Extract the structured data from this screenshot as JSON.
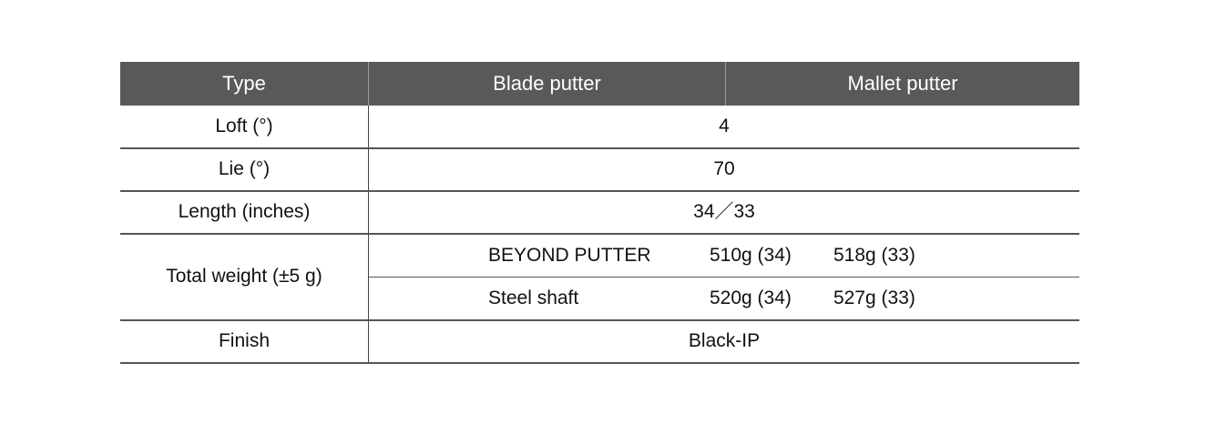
{
  "table": {
    "header": {
      "type": "Type",
      "blade": "Blade putter",
      "mallet": "Mallet putter"
    },
    "rows": {
      "loft": {
        "label": "Loft (°)",
        "value": "4"
      },
      "lie": {
        "label": "Lie (°)",
        "value": "70"
      },
      "length": {
        "label": "Length (inches)",
        "value": "34／33"
      },
      "weight": {
        "label": "Total weight (±5 g)",
        "subrows": [
          {
            "shaft": "BEYOND PUTTER",
            "v34": "510g (34)",
            "v33": "518g (33)"
          },
          {
            "shaft": "Steel shaft",
            "v34": "520g (34)",
            "v33": "527g (33)"
          }
        ]
      },
      "finish": {
        "label": "Finish",
        "value": "Black-IP"
      }
    },
    "colors": {
      "header_bg": "#595959",
      "header_text": "#ffffff",
      "rule": "#555555"
    }
  }
}
